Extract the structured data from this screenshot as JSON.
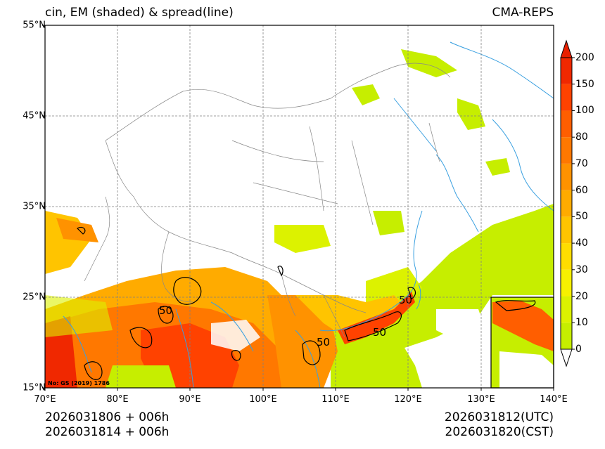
{
  "title_left": "cin, EM (shaded) & spread(line)",
  "title_right": "CMA-REPS",
  "lat_labels": [
    "55°N",
    "45°N",
    "35°N",
    "25°N",
    "15°N"
  ],
  "lon_labels": [
    "70°E",
    "80°E",
    "90°E",
    "100°E",
    "110°E",
    "120°E",
    "130°E",
    "140°E"
  ],
  "colorbar": {
    "labels": [
      "0",
      "10",
      "20",
      "30",
      "40",
      "50",
      "60",
      "70",
      "80",
      "100",
      "150",
      "200"
    ],
    "colors": [
      "#c6ee00",
      "#dcf200",
      "#f7f100",
      "#ffdd00",
      "#ffc400",
      "#ffab00",
      "#ff9200",
      "#ff7800",
      "#ff5e00",
      "#ff4200",
      "#f02800"
    ],
    "over_color": "#e82000",
    "under_color": "#ffffff"
  },
  "map": {
    "lat_range": [
      15,
      55
    ],
    "lon_range": [
      70,
      140
    ],
    "contour_labels": [
      "50",
      "50",
      "50",
      "50"
    ],
    "inset_present": true
  },
  "credit": "No: GS (2019) 1786",
  "footer": {
    "left_line1": "2026031806  +  006h",
    "left_line2": "2026031814  +  006h",
    "right_line1": "2026031812(UTC)",
    "right_line2": "2026031820(CST)"
  },
  "colors": {
    "coast": "#3aa0e0",
    "border": "#888888",
    "grid": "#808080"
  }
}
